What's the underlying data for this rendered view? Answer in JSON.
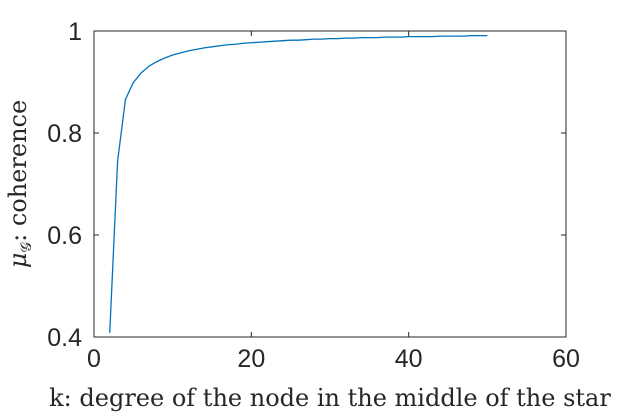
{
  "chart_data": {
    "type": "line",
    "title": "",
    "xlabel": "k: degree of the node in the middle of the star",
    "ylabel_symbol": "μ",
    "ylabel_subscript": "𝒢",
    "ylabel_text": ": coherence",
    "xlim": [
      0,
      60
    ],
    "ylim": [
      0.4,
      1
    ],
    "xticks": [
      0,
      20,
      40,
      60
    ],
    "xtick_labels": [
      "0",
      "20",
      "40",
      "60"
    ],
    "yticks": [
      0.4,
      0.6,
      0.8,
      1
    ],
    "ytick_labels": [
      "0.4",
      "0.6",
      "0.8",
      "1"
    ],
    "grid": false,
    "line_color": "#0072bd",
    "series": [
      {
        "x": [
          2,
          3,
          4,
          5,
          6,
          7,
          8,
          9,
          10,
          11,
          12,
          13,
          14,
          15,
          16,
          17,
          18,
          19,
          20,
          21,
          22,
          23,
          24,
          25,
          26,
          27,
          28,
          29,
          30,
          31,
          32,
          33,
          34,
          35,
          36,
          37,
          38,
          39,
          40,
          41,
          42,
          43,
          44,
          45,
          46,
          47,
          48,
          49,
          50
        ],
        "values": [
          0.408,
          0.745,
          0.866,
          0.899,
          0.918,
          0.931,
          0.94,
          0.947,
          0.953,
          0.957,
          0.961,
          0.964,
          0.967,
          0.969,
          0.971,
          0.973,
          0.974,
          0.976,
          0.977,
          0.978,
          0.979,
          0.98,
          0.981,
          0.982,
          0.982,
          0.983,
          0.984,
          0.984,
          0.985,
          0.985,
          0.986,
          0.986,
          0.987,
          0.987,
          0.987,
          0.988,
          0.988,
          0.988,
          0.989,
          0.989,
          0.989,
          0.989,
          0.99,
          0.99,
          0.99,
          0.99,
          0.991,
          0.991,
          0.991
        ]
      }
    ]
  }
}
